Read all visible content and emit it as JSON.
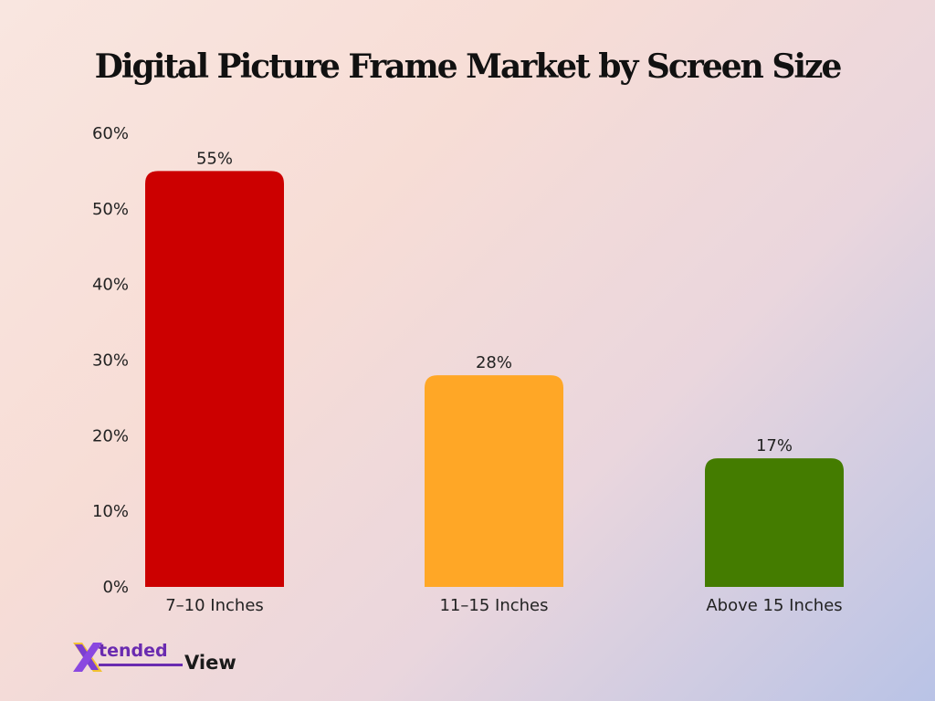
{
  "chart_data": {
    "type": "bar",
    "title": "Digital Picture Frame Market by Screen Size",
    "categories": [
      "7–10 Inches",
      "11–15 Inches",
      "Above 15 Inches"
    ],
    "values": [
      55,
      28,
      17
    ],
    "value_labels": [
      "55%",
      "28%",
      "17%"
    ],
    "colors": [
      "#cc0000",
      "#ffa726",
      "#447c00"
    ],
    "ylim": [
      0,
      60
    ],
    "yticks": [
      0,
      10,
      20,
      30,
      40,
      50,
      60
    ],
    "ytick_labels": [
      "0%",
      "10%",
      "20%",
      "30%",
      "40%",
      "50%",
      "60%"
    ],
    "grid": false,
    "legend": "none"
  },
  "logo": {
    "mark": "X",
    "word1": "tended",
    "word2": "View"
  }
}
